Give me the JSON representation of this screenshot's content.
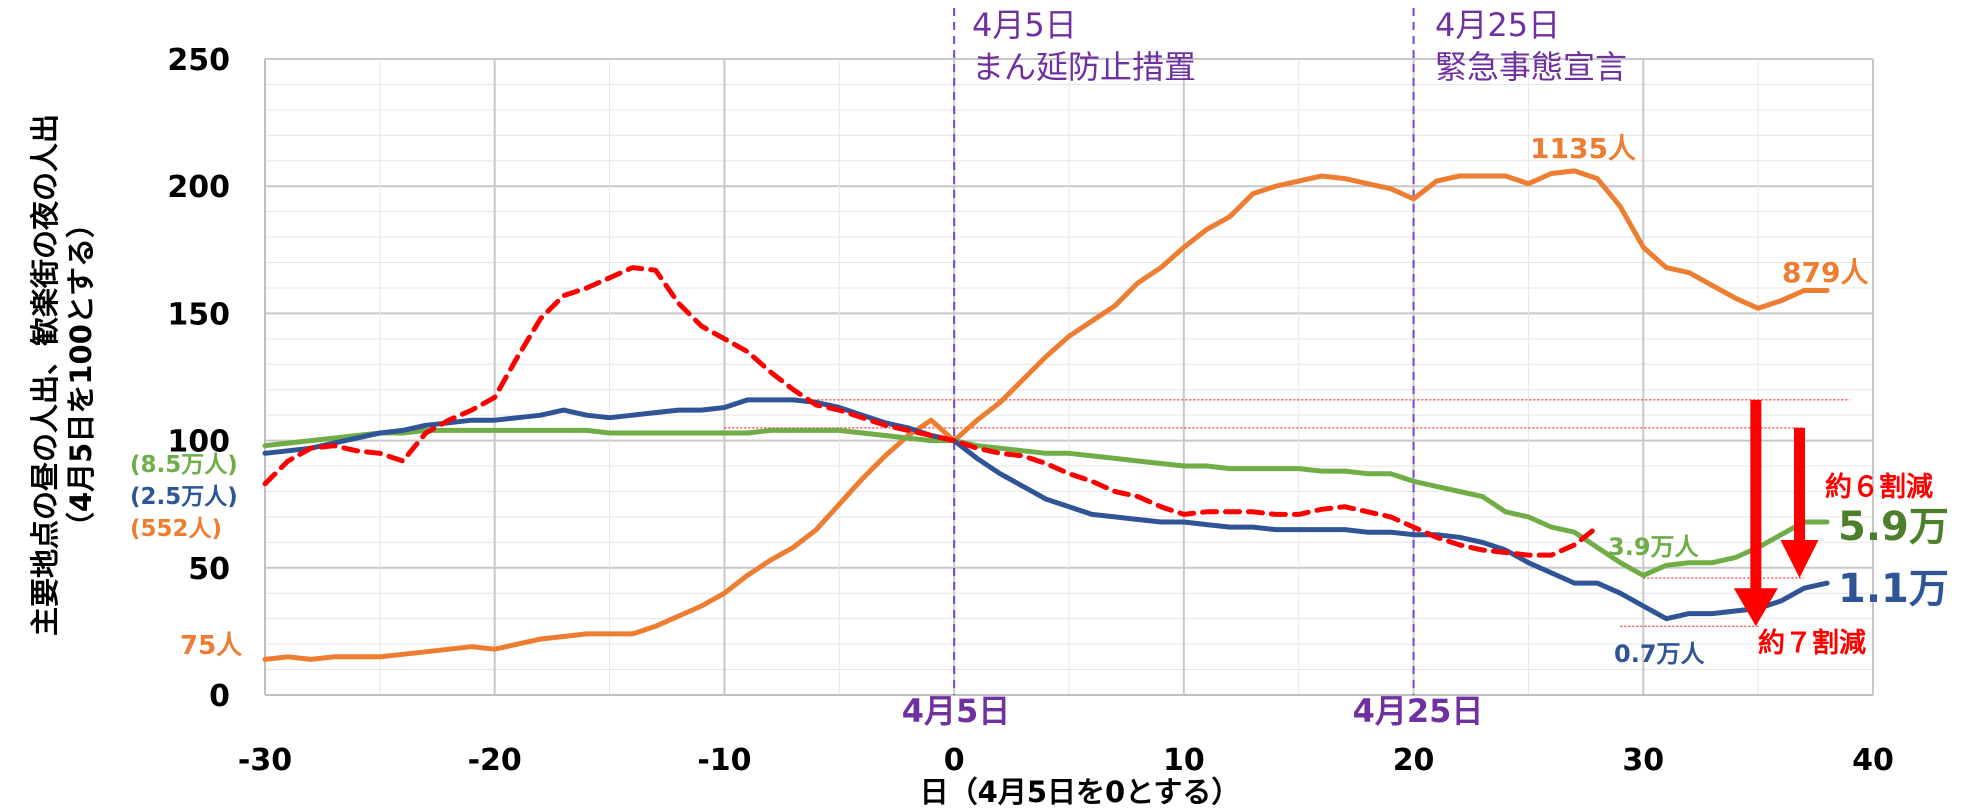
{
  "chart_data": {
    "type": "line",
    "title": "",
    "xlabel": "日（4月5日を0とする）",
    "ylabel": "主要地点の昼の人出、歓楽街の夜の人出",
    "ylabel2": "（4月5日を100とする）",
    "xlim": [
      -30,
      40
    ],
    "ylim": [
      0,
      250
    ],
    "xticks": [
      "-30",
      "-20",
      "-10",
      "0",
      "10",
      "20",
      "30",
      "40"
    ],
    "yticks": [
      "0",
      "50",
      "100",
      "150",
      "200",
      "250"
    ],
    "grid": true,
    "colors": {
      "orange": "#ed7d31",
      "blue": "#2f5597",
      "green": "#70ad47",
      "red": "#ff0000",
      "purple": "#7030a0"
    },
    "series": [
      {
        "color": "#ed7d31",
        "style": "solid",
        "x": [
          -30,
          -29,
          -28,
          -27,
          -26,
          -25,
          -24,
          -23,
          -22,
          -21,
          -20,
          -19,
          -18,
          -17,
          -16,
          -15,
          -14,
          -13,
          -12,
          -11,
          -10,
          -9,
          -8,
          -7,
          -6,
          -5,
          -4,
          -3,
          -2,
          -1,
          0,
          1,
          2,
          3,
          4,
          5,
          6,
          7,
          8,
          9,
          10,
          11,
          12,
          13,
          14,
          15,
          16,
          17,
          18,
          19,
          20,
          21,
          22,
          23,
          24,
          25,
          26,
          27,
          28,
          29,
          30,
          31,
          32,
          33,
          34,
          35,
          36,
          37,
          38
        ],
        "y": [
          14,
          15,
          14,
          15,
          15,
          15,
          16,
          17,
          18,
          19,
          18,
          20,
          22,
          23,
          24,
          24,
          24,
          27,
          31,
          35,
          40,
          47,
          53,
          58,
          65,
          75,
          85,
          94,
          102,
          108,
          100,
          108,
          115,
          124,
          133,
          141,
          147,
          153,
          162,
          168,
          176,
          183,
          188,
          197,
          200,
          202,
          204,
          203,
          201,
          199,
          195,
          202,
          204,
          204,
          204,
          201,
          205,
          206,
          203,
          192,
          176,
          168,
          166,
          161,
          156,
          152,
          155,
          159,
          159
        ]
      },
      {
        "color": "#2f5597",
        "style": "solid",
        "x": [
          -30,
          -29,
          -28,
          -27,
          -26,
          -25,
          -24,
          -23,
          -22,
          -21,
          -20,
          -19,
          -18,
          -17,
          -16,
          -15,
          -14,
          -13,
          -12,
          -11,
          -10,
          -9,
          -8,
          -7,
          -6,
          -5,
          -4,
          -3,
          -2,
          -1,
          0,
          1,
          2,
          3,
          4,
          5,
          6,
          7,
          8,
          9,
          10,
          11,
          12,
          13,
          14,
          15,
          16,
          17,
          18,
          19,
          20,
          21,
          22,
          23,
          24,
          25,
          26,
          27,
          28,
          29,
          30,
          31,
          32,
          33,
          34,
          35,
          36,
          37,
          38
        ],
        "y": [
          95,
          96,
          97,
          99,
          101,
          103,
          104,
          106,
          107,
          108,
          108,
          109,
          110,
          112,
          110,
          109,
          110,
          111,
          112,
          112,
          113,
          116,
          116,
          116,
          115,
          113,
          110,
          107,
          105,
          102,
          100,
          93,
          87,
          82,
          77,
          74,
          71,
          70,
          69,
          68,
          68,
          67,
          66,
          66,
          65,
          65,
          65,
          65,
          64,
          64,
          63,
          63,
          62,
          60,
          57,
          52,
          48,
          44,
          44,
          40,
          35,
          30,
          32,
          32,
          33,
          34,
          37,
          42,
          44
        ]
      },
      {
        "color": "#70ad47",
        "style": "solid",
        "x": [
          -30,
          -29,
          -28,
          -27,
          -26,
          -25,
          -24,
          -23,
          -22,
          -21,
          -20,
          -19,
          -18,
          -17,
          -16,
          -15,
          -14,
          -13,
          -12,
          -11,
          -10,
          -9,
          -8,
          -7,
          -6,
          -5,
          -4,
          -3,
          -2,
          -1,
          0,
          1,
          2,
          3,
          4,
          5,
          6,
          7,
          8,
          9,
          10,
          11,
          12,
          13,
          14,
          15,
          16,
          17,
          18,
          19,
          20,
          21,
          22,
          23,
          24,
          25,
          26,
          27,
          28,
          29,
          30,
          31,
          32,
          33,
          34,
          35,
          36,
          37,
          38
        ],
        "y": [
          98,
          99,
          100,
          101,
          102,
          103,
          103,
          104,
          104,
          104,
          104,
          104,
          104,
          104,
          104,
          103,
          103,
          103,
          103,
          103,
          103,
          103,
          104,
          104,
          104,
          104,
          103,
          102,
          101,
          100,
          100,
          98,
          97,
          96,
          95,
          95,
          94,
          93,
          92,
          91,
          90,
          90,
          89,
          89,
          89,
          89,
          88,
          88,
          87,
          87,
          84,
          82,
          80,
          78,
          72,
          70,
          66,
          64,
          58,
          52,
          47,
          51,
          52,
          52,
          54,
          58,
          63,
          68,
          68
        ]
      },
      {
        "color": "#ff0000",
        "style": "dashed",
        "x": [
          -30,
          -29,
          -28,
          -27,
          -26,
          -25,
          -24,
          -23,
          -22,
          -21,
          -20,
          -19,
          -18,
          -17,
          -16,
          -15,
          -14,
          -13,
          -12,
          -11,
          -10,
          -9,
          -8,
          -7,
          -6,
          -5,
          -4,
          -3,
          -2,
          -1,
          0,
          1,
          2,
          3,
          4,
          5,
          6,
          7,
          8,
          9,
          10,
          11,
          12,
          13,
          14,
          15,
          16,
          17,
          18,
          19,
          20,
          21,
          22,
          23,
          24,
          25,
          26,
          27,
          28
        ],
        "y": [
          83,
          92,
          97,
          98,
          96,
          95,
          92,
          103,
          108,
          112,
          117,
          133,
          148,
          157,
          160,
          164,
          168,
          167,
          154,
          145,
          140,
          135,
          127,
          120,
          114,
          112,
          109,
          106,
          104,
          102,
          100,
          97,
          95,
          94,
          91,
          87,
          84,
          80,
          78,
          74,
          71,
          72,
          72,
          72,
          71,
          71,
          73,
          74,
          72,
          70,
          66,
          62,
          59,
          57,
          56,
          55,
          55,
          59,
          66
        ]
      }
    ],
    "events": [
      {
        "x": 0,
        "date": "4月5日",
        "label": "まん延防止措置",
        "axis_label": "4月5日"
      },
      {
        "x": 20,
        "date": "4月25日",
        "label": "緊急事態宣言",
        "axis_label": "4月25日"
      }
    ],
    "annotations": {
      "start_green": "(8.5万人)",
      "start_blue": "(2.5万人)",
      "start_orange": "(552人)",
      "orange_start": "75人",
      "orange_peak": "1135人",
      "orange_end": "879人",
      "green_low": "3.9万人",
      "green_end": "5.9万",
      "blue_low": "0.7万人",
      "blue_end": "1.1万",
      "reduction_6": "約６割減",
      "reduction_7": "約７割減"
    }
  }
}
